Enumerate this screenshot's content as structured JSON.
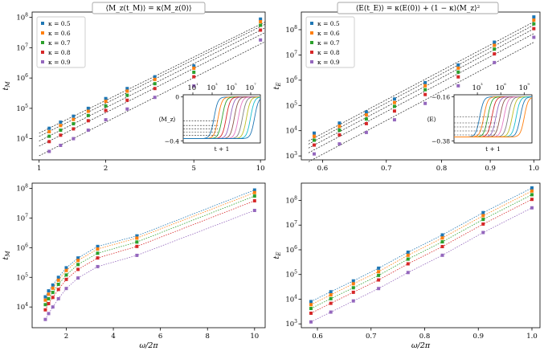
{
  "colors": [
    "#1f77b4",
    "#ff7f0e",
    "#2ca02c",
    "#d62728",
    "#9467bd"
  ],
  "inset_colors": [
    "#1f77b4",
    "#ff7f0e",
    "#2ca02c",
    "#d62728",
    "#9467bd",
    "#8c564b",
    "#e377c2",
    "#7f7f7f",
    "#bcbd22",
    "#17becf",
    "#1f77b4",
    "#ff7f0e"
  ],
  "legend": [
    "κ = 0.5",
    "κ = 0.6",
    "κ = 0.7",
    "κ = 0.8",
    "κ = 0.9"
  ],
  "top_left_title": "⟨M_z(t_M)⟩ = κ⟨M_z(0)⟩",
  "top_right_title": "⟨E(t_E)⟩ = κ⟨E(0)⟩ + (1 − κ)⟨M_z⟩²",
  "chart_data": [
    {
      "name": "tM_vs_omega_loglog",
      "type": "scatter",
      "xscale": "log",
      "yscale": "log",
      "xlim": [
        0.93,
        10.5
      ],
      "ylim": [
        2000,
        150000000
      ],
      "xticks": [
        1,
        2,
        5,
        10
      ],
      "xtick_labels": [
        "1",
        "2",
        "5",
        "10"
      ],
      "ylabel": "t_M",
      "legend_position": "top-left",
      "x": [
        1.111,
        1.25,
        1.429,
        1.667,
        2.0,
        2.5,
        3.333,
        5.0,
        10.0
      ],
      "series": [
        {
          "name": "κ = 0.5",
          "values": [
            22000,
            35000,
            55000,
            100000,
            210000,
            450000,
            1100000,
            2500000,
            88000000
          ]
        },
        {
          "name": "κ = 0.6",
          "values": [
            17000,
            27000,
            43000,
            80000,
            170000,
            370000,
            900000,
            2100000,
            72000000
          ]
        },
        {
          "name": "κ = 0.7",
          "values": [
            12000,
            19000,
            31000,
            58000,
            120000,
            270000,
            650000,
            1550000,
            55000000
          ]
        },
        {
          "name": "κ = 0.8",
          "values": [
            8000,
            13000,
            21000,
            39000,
            85000,
            185000,
            450000,
            1100000,
            38000000
          ]
        },
        {
          "name": "κ = 0.9",
          "values": [
            3800,
            6000,
            10000,
            19000,
            42000,
            95000,
            230000,
            550000,
            18000000
          ]
        }
      ]
    },
    {
      "name": "Mz_inset",
      "type": "line",
      "xscale": "log",
      "xticks": [
        10,
        1000,
        100000,
        10000000
      ],
      "xtick_labels": [
        "10¹",
        "10³",
        "10⁵",
        "10⁷"
      ],
      "yticks": [
        0,
        -0.4
      ],
      "ytick_labels": [
        "0",
        "−0.4"
      ],
      "xlabel": "t + 1",
      "ylabel": "⟨M_z⟩",
      "ylim": [
        -0.42,
        0.02
      ]
    },
    {
      "name": "tE_vs_omega_loglog",
      "type": "scatter",
      "xscale": "log",
      "yscale": "log",
      "xlim": [
        0.57,
        1.015
      ],
      "ylim": [
        700,
        500000000
      ],
      "xticks": [
        0.6,
        0.7,
        0.8,
        0.9,
        1.0
      ],
      "xtick_labels": [
        "0.6",
        "0.7",
        "0.8",
        "0.9",
        "1.0"
      ],
      "ylabel": "t_E",
      "legend_position": "top-left",
      "x": [
        0.588,
        0.625,
        0.667,
        0.714,
        0.769,
        0.833,
        0.909,
        1.0
      ],
      "series": [
        {
          "name": "κ = 0.5",
          "values": [
            8000,
            20000,
            55000,
            180000,
            800000,
            4000000,
            32000000,
            320000000
          ]
        },
        {
          "name": "κ = 0.6",
          "values": [
            6000,
            15000,
            42000,
            130000,
            600000,
            3000000,
            24000000,
            240000000
          ]
        },
        {
          "name": "κ = 0.7",
          "values": [
            4200,
            10500,
            29000,
            92000,
            420000,
            2100000,
            17000000,
            170000000
          ]
        },
        {
          "name": "κ = 0.8",
          "values": [
            2700,
            6800,
            19000,
            60000,
            270000,
            1350000,
            11000000,
            110000000
          ]
        },
        {
          "name": "κ = 0.9",
          "values": [
            1200,
            3000,
            8500,
            27000,
            120000,
            600000,
            5000000,
            50000000
          ]
        }
      ]
    },
    {
      "name": "E_inset",
      "type": "line",
      "xscale": "log",
      "xticks": [
        1000,
        1000000,
        1000000000
      ],
      "xtick_labels": [
        "10³",
        "10⁶",
        "10⁹"
      ],
      "yticks": [
        -0.16,
        -0.38
      ],
      "ytick_labels": [
        "−0.16",
        "−0.38"
      ],
      "xlabel": "t + 1",
      "ylabel": "⟨E⟩",
      "ylim": [
        -0.39,
        -0.15
      ]
    },
    {
      "name": "tM_vs_omega_semilog",
      "type": "line",
      "xscale": "linear",
      "yscale": "log",
      "xlim": [
        0.55,
        10.45
      ],
      "ylim": [
        2000,
        150000000
      ],
      "xticks": [
        2,
        4,
        6,
        8,
        10
      ],
      "xtick_labels": [
        "2",
        "4",
        "6",
        "8",
        "10"
      ],
      "ylabel": "t_M",
      "xlabel": "ω/2π"
    },
    {
      "name": "tE_vs_omega_semilog",
      "type": "line",
      "xscale": "linear",
      "yscale": "log",
      "xlim": [
        0.57,
        1.015
      ],
      "ylim": [
        700,
        500000000
      ],
      "xticks": [
        0.6,
        0.7,
        0.8,
        0.9,
        1.0
      ],
      "xtick_labels": [
        "0.6",
        "0.7",
        "0.8",
        "0.9",
        "1.0"
      ],
      "ylabel": "t_E",
      "xlabel": "ω/2π"
    }
  ]
}
